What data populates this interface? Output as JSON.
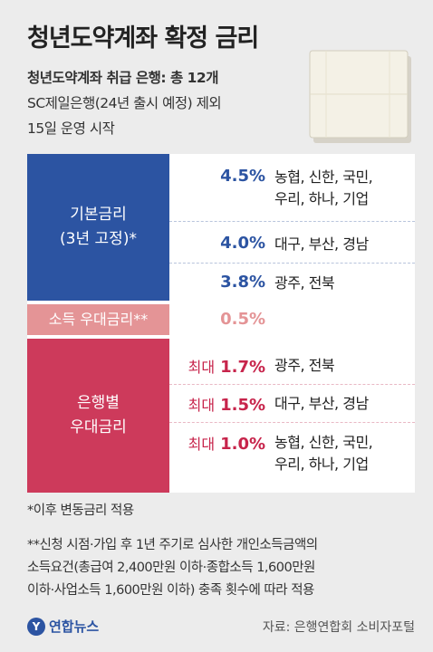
{
  "title": "청년도약계좌 확정 금리",
  "subtitle1": "청년도약계좌 취급 은행: 총 12개",
  "subtitle2": "SC제일은행(24년 출시 예정) 제외",
  "subtitle3": "15일 운영 시작",
  "table": {
    "base_label": "기본금리\n(3년 고정)*",
    "base_rows": [
      {
        "rate": "4.5%",
        "banks": "농협, 신한, 국민,\n우리, 하나, 기업"
      },
      {
        "rate": "4.0%",
        "banks": "대구, 부산, 경남"
      },
      {
        "rate": "3.8%",
        "banks": "광주, 전북"
      }
    ],
    "income_label": "소득 우대금리**",
    "income_rate": "0.5%",
    "bank_label": "은행별\n우대금리",
    "bank_rows": [
      {
        "prefix": "최대",
        "rate": "1.7%",
        "banks": "광주, 전북"
      },
      {
        "prefix": "최대",
        "rate": "1.5%",
        "banks": "대구, 부산, 경남"
      },
      {
        "prefix": "최대",
        "rate": "1.0%",
        "banks": "농협, 신한, 국민,\n우리, 하나, 기업"
      }
    ]
  },
  "note1": "*이후 변동금리 적용",
  "note2_lines": [
    "**신청 시점·가입 후 1년 주기로 심사한 개인소득금액의",
    "소득요건(총급여 2,400만원 이하·종합소득 1,600만원",
    "이하·사업소득 1,600만원 이하) 충족 횟수에 따라 적용"
  ],
  "logo_text": "연합뉴스",
  "source": "자료: 은행연합회 소비자포털",
  "colors": {
    "base": "#2c54a2",
    "income": "#e49496",
    "bank": "#cd3a5b",
    "background": "#ececec"
  }
}
